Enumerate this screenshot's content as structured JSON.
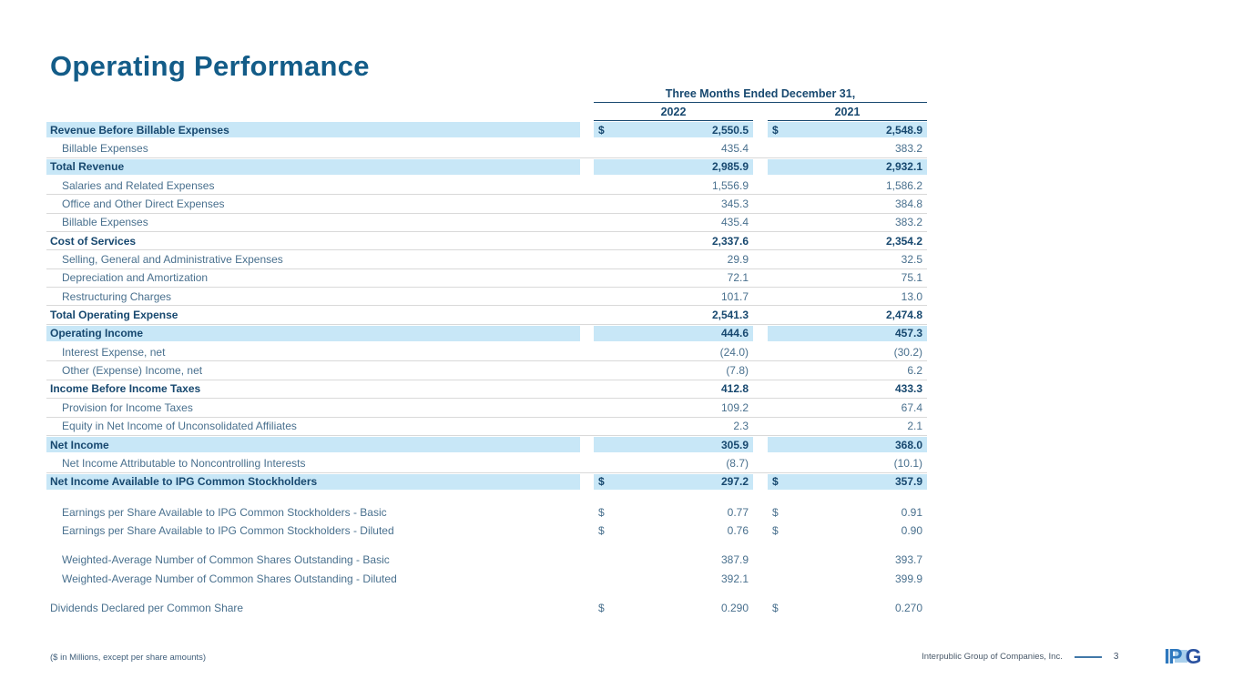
{
  "slide": {
    "title": "Operating Performance",
    "footnote": "($ in Millions, except per share amounts)",
    "footer": {
      "company": "Interpublic Group of Companies, Inc.",
      "page_number": "3",
      "logo_ip": "IP",
      "logo_g": "G"
    }
  },
  "colors": {
    "highlight_row": "#C8E7F7",
    "bold_text": "#17486F",
    "body_text": "#49708E",
    "title_text": "#135C88",
    "row_divider": "#D9D9D9",
    "footer_line": "#4178A8",
    "logo_blue": "#2E78BE",
    "logo_dark_blue": "#2A52A0",
    "logo_light_square": "#A9CFEC"
  },
  "table": {
    "header": {
      "title": "Three Months Ended December 31,",
      "col1": "2022",
      "col2": "2021"
    },
    "rows": [
      {
        "label": "Revenue Before Billable Expenses",
        "v2022": "2,550.5",
        "v2021": "2,548.9",
        "b": true,
        "h": true,
        "d": true
      },
      {
        "label": "Billable Expenses",
        "v2022": "435.4",
        "v2021": "383.2",
        "i": true
      },
      {
        "label": "Total Revenue",
        "v2022": "2,985.9",
        "v2021": "2,932.1",
        "b": true,
        "h": true
      },
      {
        "label": "Salaries and Related Expenses",
        "v2022": "1,556.9",
        "v2021": "1,586.2",
        "i": true
      },
      {
        "label": "Office and Other Direct Expenses",
        "v2022": "345.3",
        "v2021": "384.8",
        "i": true
      },
      {
        "label": "Billable Expenses",
        "v2022": "435.4",
        "v2021": "383.2",
        "i": true
      },
      {
        "label": "Cost of Services",
        "v2022": "2,337.6",
        "v2021": "2,354.2",
        "b": true
      },
      {
        "label": "Selling, General and Administrative Expenses",
        "v2022": "29.9",
        "v2021": "32.5",
        "i": true
      },
      {
        "label": "Depreciation and Amortization",
        "v2022": "72.1",
        "v2021": "75.1",
        "i": true
      },
      {
        "label": "Restructuring Charges",
        "v2022": "101.7",
        "v2021": "13.0",
        "i": true
      },
      {
        "label": "Total Operating Expense",
        "v2022": "2,541.3",
        "v2021": "2,474.8",
        "b": true
      },
      {
        "label": "Operating Income",
        "v2022": "444.6",
        "v2021": "457.3",
        "b": true,
        "h": true
      },
      {
        "label": "Interest Expense, net",
        "v2022": "(24.0)",
        "v2021": "(30.2)",
        "i": true
      },
      {
        "label": "Other (Expense) Income, net",
        "v2022": "(7.8)",
        "v2021": "6.2",
        "i": true
      },
      {
        "label": "Income Before Income Taxes",
        "v2022": "412.8",
        "v2021": "433.3",
        "b": true
      },
      {
        "label": "Provision for Income Taxes",
        "v2022": "109.2",
        "v2021": "67.4",
        "i": true
      },
      {
        "label": "Equity in Net Income of Unconsolidated Affiliates",
        "v2022": "2.3",
        "v2021": "2.1",
        "i": true
      },
      {
        "label": "Net Income",
        "v2022": "305.9",
        "v2021": "368.0",
        "b": true,
        "h": true
      },
      {
        "label": "Net Income Attributable to Noncontrolling Interests",
        "v2022": "(8.7)",
        "v2021": "(10.1)",
        "i": true
      },
      {
        "label": "Net Income Available to IPG Common Stockholders",
        "v2022": "297.2",
        "v2021": "357.9",
        "b": true,
        "h": true,
        "d": true
      },
      {
        "label": "Earnings per Share Available to IPG Common Stockholders - Basic",
        "v2022": "0.77",
        "v2021": "0.91",
        "i": true,
        "d": true,
        "nb": true,
        "g": 13
      },
      {
        "label": "Earnings per Share Available to IPG Common Stockholders - Diluted",
        "v2022": "0.76",
        "v2021": "0.90",
        "i": true,
        "d": true,
        "nb": true
      },
      {
        "label": "Weighted-Average Number of Common Shares Outstanding - Basic",
        "v2022": "387.9",
        "v2021": "393.7",
        "i": true,
        "nb": true,
        "g": 12
      },
      {
        "label": "Weighted-Average Number of Common Shares Outstanding - Diluted",
        "v2022": "392.1",
        "v2021": "399.9",
        "i": true,
        "nb": true
      },
      {
        "label": "Dividends Declared per Common Share",
        "v2022": "0.290",
        "v2021": "0.270",
        "d": true,
        "nb": true,
        "g": 12
      }
    ]
  }
}
